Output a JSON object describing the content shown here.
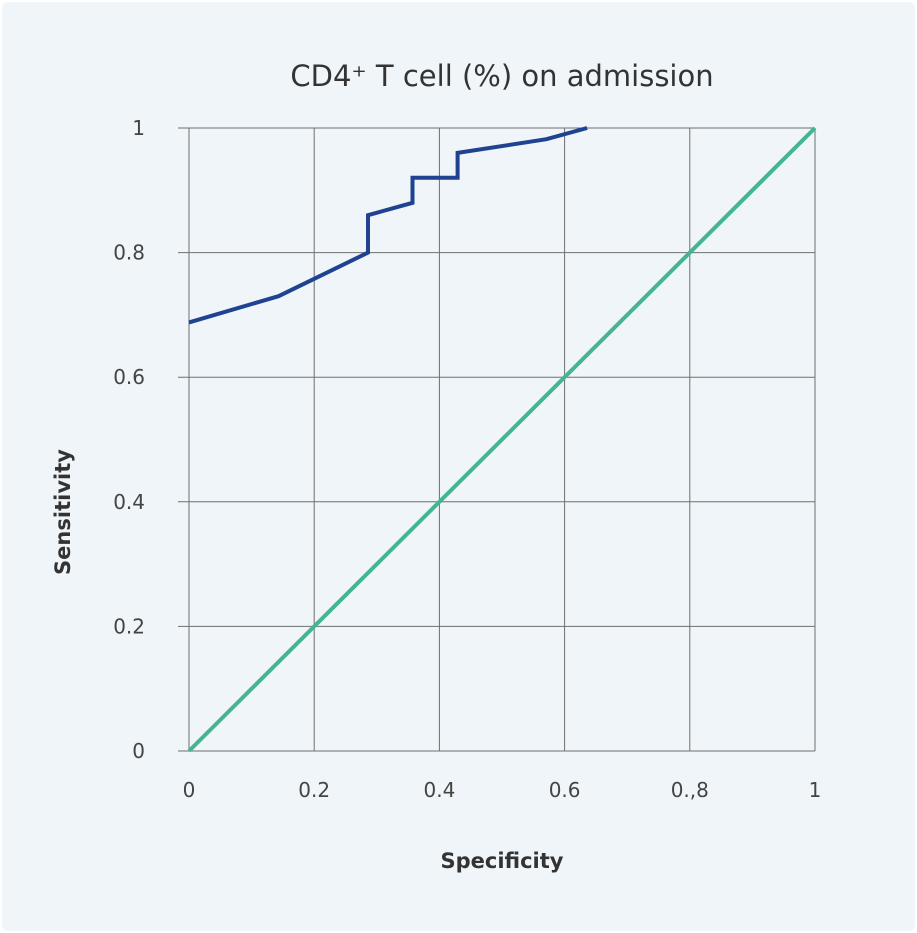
{
  "chart_data": {
    "type": "line",
    "title": "CD4⁺ T cell (%) on admission",
    "xlabel": "Specificity",
    "ylabel": "Sensitivity",
    "xlim": [
      0,
      1
    ],
    "ylim": [
      0,
      1
    ],
    "x_ticks": [
      {
        "value": 0,
        "label": "0"
      },
      {
        "value": 0.2,
        "label": "0.2"
      },
      {
        "value": 0.4,
        "label": "0.4"
      },
      {
        "value": 0.6,
        "label": "0.6"
      },
      {
        "value": 0.8,
        "label": "0.,8"
      },
      {
        "value": 1,
        "label": "1"
      }
    ],
    "y_ticks": [
      {
        "value": 0,
        "label": "0"
      },
      {
        "value": 0.2,
        "label": "0.2"
      },
      {
        "value": 0.4,
        "label": "0.4"
      },
      {
        "value": 0.6,
        "label": "0.6"
      },
      {
        "value": 0.8,
        "label": "0.8"
      },
      {
        "value": 1,
        "label": "1"
      }
    ],
    "grid": true,
    "series": [
      {
        "color": "#1f4391",
        "x": [
          0,
          0.143,
          0.286,
          0.286,
          0.357,
          0.357,
          0.429,
          0.429,
          0.571,
          0.636
        ],
        "y": [
          0.688,
          0.73,
          0.8,
          0.86,
          0.88,
          0.92,
          0.92,
          0.96,
          0.982,
          1.0
        ]
      },
      {
        "color": "#44b592",
        "x": [
          0,
          1
        ],
        "y": [
          0,
          1
        ]
      }
    ]
  }
}
